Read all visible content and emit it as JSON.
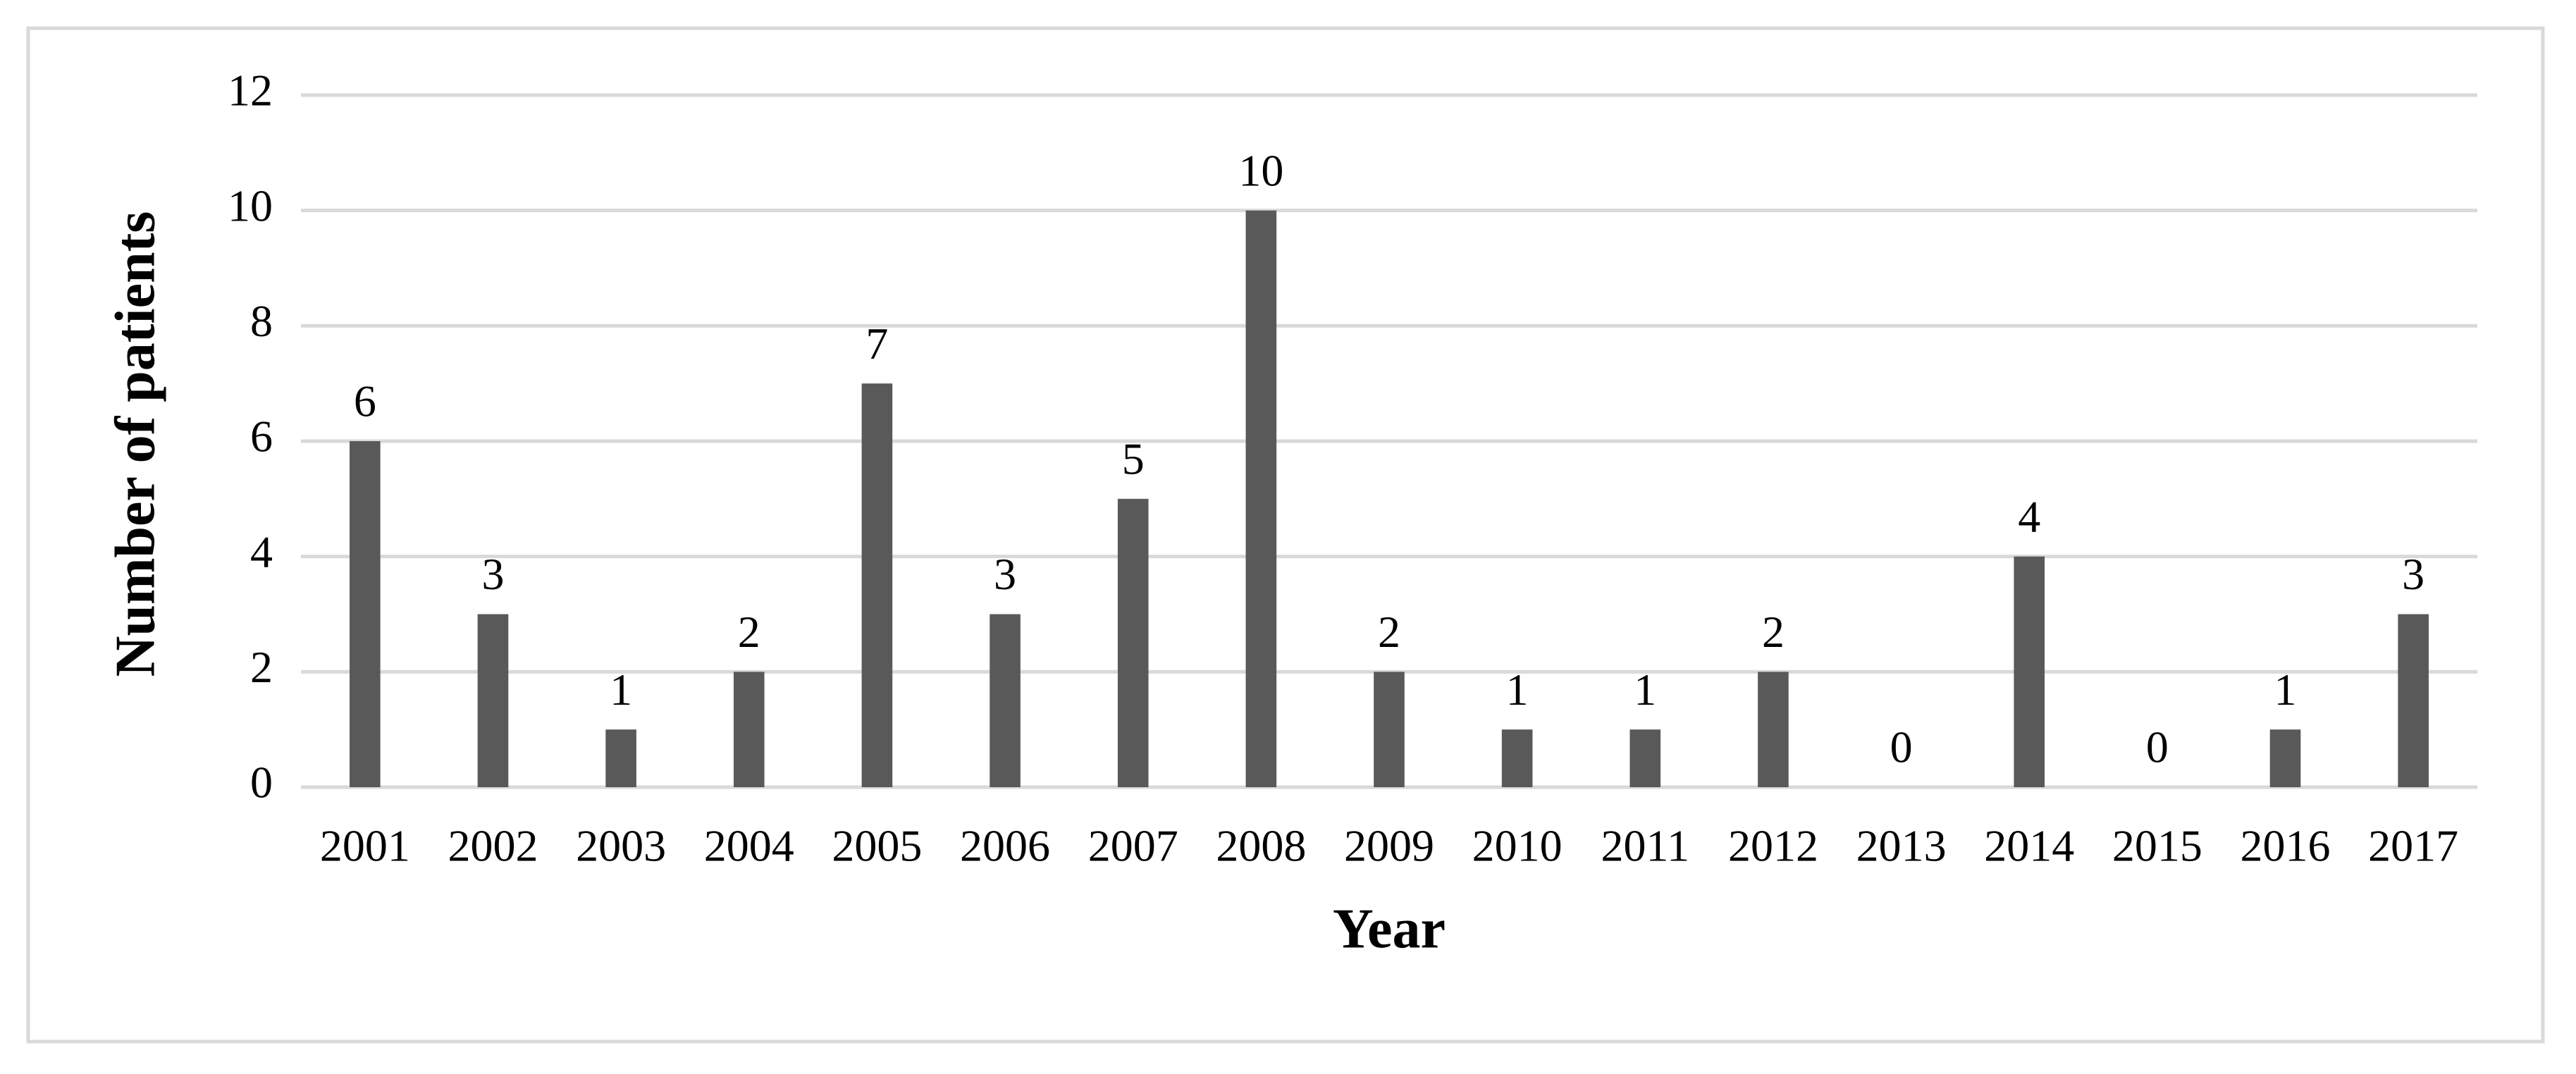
{
  "chart_data": {
    "type": "bar",
    "x_label": "Year",
    "y_label": "Number of patients",
    "categories": [
      "2001",
      "2002",
      "2003",
      "2004",
      "2005",
      "2006",
      "2007",
      "2008",
      "2009",
      "2010",
      "2011",
      "2012",
      "2013",
      "2014",
      "2015",
      "2016",
      "2017"
    ],
    "values": [
      6,
      3,
      1,
      2,
      7,
      3,
      5,
      10,
      2,
      1,
      1,
      2,
      0,
      4,
      0,
      1,
      3
    ],
    "color": "#595959",
    "ylim": [
      0,
      12
    ],
    "yticks": [
      0,
      2,
      4,
      6,
      8,
      10,
      12
    ],
    "grid": true,
    "data_labels": true
  }
}
